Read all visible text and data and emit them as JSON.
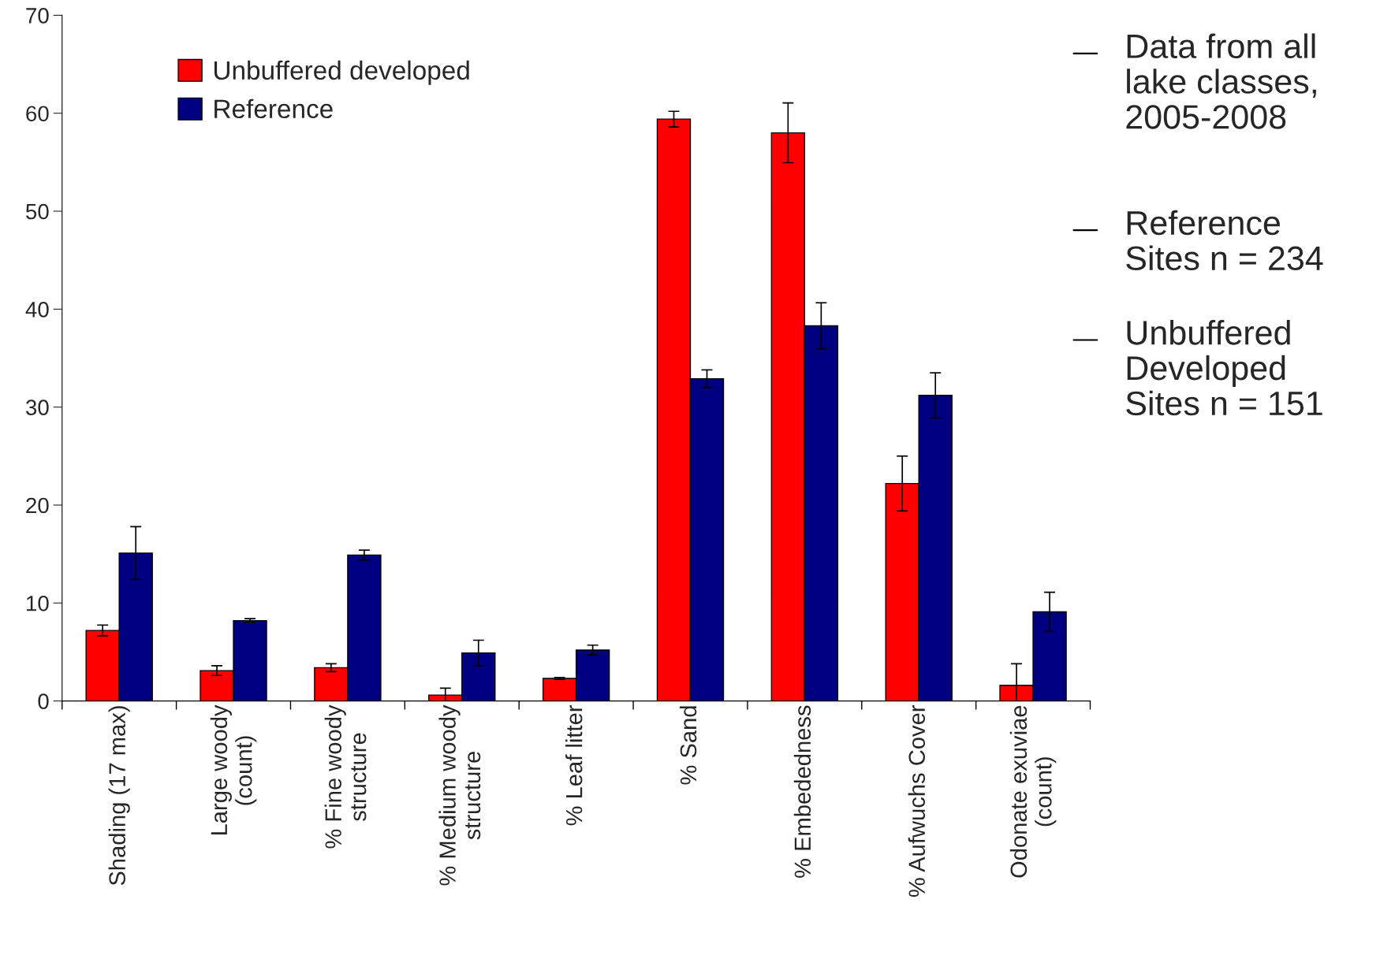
{
  "chart_data": {
    "type": "bar",
    "categories": [
      "Shading (17 max)",
      "Large woody\n(count)",
      "% Fine woody\nstructure",
      "% Medium woody\nstructure",
      "% Leaf litter",
      "% Sand",
      "% Embededness",
      "% Aufwuchs Cover",
      "Odonate exuviae\n(count)"
    ],
    "series": [
      {
        "name": "Unbuffered developed",
        "color": "#ff0000",
        "values": [
          7.2,
          3.1,
          3.4,
          0.6,
          2.3,
          59.4,
          58.0,
          22.2,
          1.6
        ],
        "errors": [
          0.55,
          0.5,
          0.4,
          0.7,
          0.1,
          0.8,
          3.05,
          2.8,
          2.2
        ]
      },
      {
        "name": "Reference",
        "color": "#000080",
        "values": [
          15.1,
          8.2,
          14.9,
          4.9,
          5.2,
          32.9,
          38.3,
          31.2,
          9.1
        ],
        "errors": [
          2.7,
          0.2,
          0.5,
          1.3,
          0.5,
          0.9,
          2.35,
          2.3,
          2.0
        ]
      }
    ],
    "ylim": [
      0,
      70
    ],
    "yticks": [
      0,
      10,
      20,
      30,
      40,
      50,
      60,
      70
    ],
    "grid": false,
    "legend": "top left",
    "annotations": [
      "Data from all\nlake classes,\n2005-2008",
      "Reference\nSites n = 234",
      "Unbuffered\nDeveloped\nSites n = 151"
    ]
  }
}
